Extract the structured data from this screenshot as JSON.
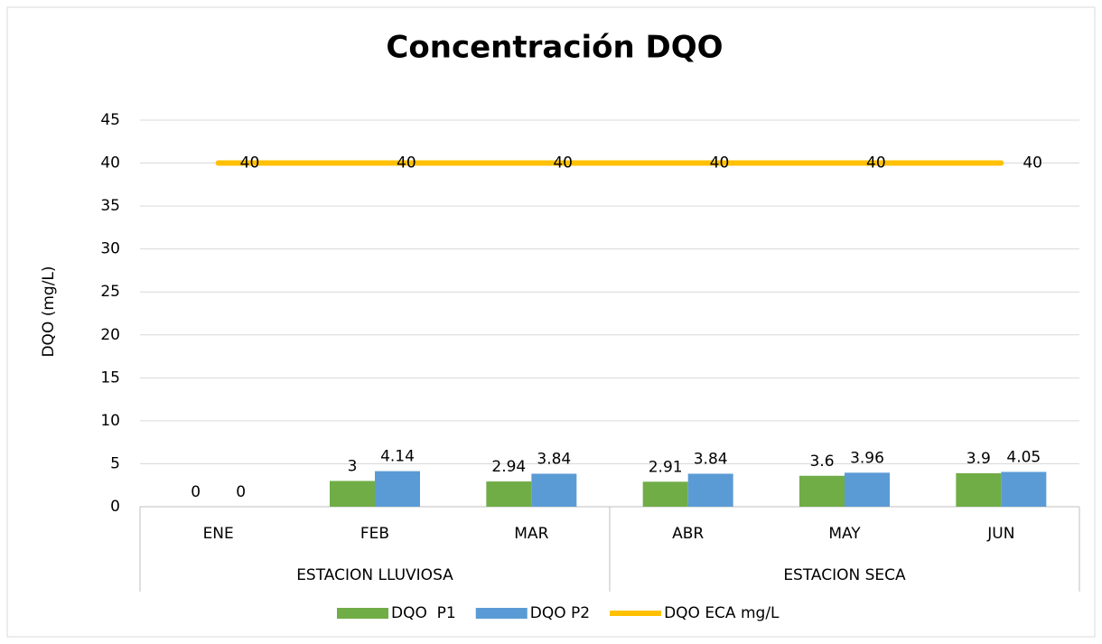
{
  "chart_data": {
    "type": "bar",
    "title": "Concentración DQO",
    "y_label": "DQO (mg/L)",
    "categories": [
      "ENE",
      "FEB",
      "MAR",
      "ABR",
      "MAY",
      "JUN"
    ],
    "groups": [
      "ESTACION LLUVIOSA",
      "ESTACION SECA"
    ],
    "series": [
      {
        "name": "DQO  P1",
        "color": "#70ad47",
        "values": [
          0,
          3,
          2.94,
          2.91,
          3.6,
          3.9
        ]
      },
      {
        "name": "DQO P2",
        "color": "#5b9bd5",
        "values": [
          0,
          4.14,
          3.84,
          3.84,
          3.96,
          4.05
        ]
      },
      {
        "name": "DQO ECA mg/L",
        "color": "#ffc000",
        "type": "line",
        "values": [
          40,
          40,
          40,
          40,
          40,
          40
        ]
      }
    ],
    "ylim": [
      0,
      45
    ],
    "yticks": [
      0,
      5,
      10,
      15,
      20,
      25,
      30,
      35,
      40,
      45
    ],
    "grid": true,
    "legend": "bottom"
  }
}
